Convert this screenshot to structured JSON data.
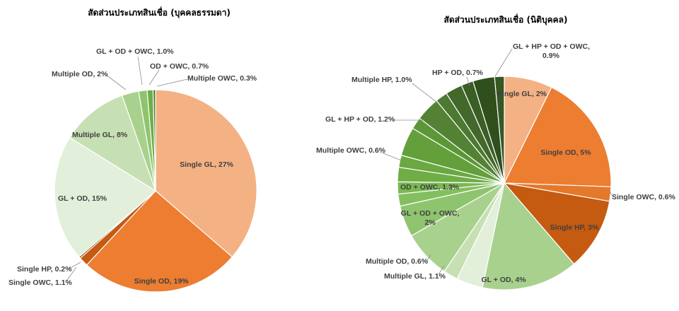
{
  "chart_data": [
    {
      "type": "pie",
      "title": "สัดส่วนประเภทสินเชื่อ (บุคคลธรรมดา)",
      "slices": [
        {
          "label": "Single GL, 27%",
          "value": 27,
          "color": "#f4b183"
        },
        {
          "label": "Single OD, 19%",
          "value": 19,
          "color": "#ed7d31"
        },
        {
          "label": "Single OWC, 1.1%",
          "value": 1.1,
          "color": "#c55a11"
        },
        {
          "label": "Single HP, 0.2%",
          "value": 0.2,
          "color": "#843c0c"
        },
        {
          "label": "GL + OD, 15%",
          "value": 15,
          "color": "#e2efda"
        },
        {
          "label": "Multiple GL, 8%",
          "value": 8,
          "color": "#c6e0b4"
        },
        {
          "label": "Multiple OD, 2%",
          "value": 2,
          "color": "#a9d18e"
        },
        {
          "label": "GL + OD + OWC, 1.0%",
          "value": 1.0,
          "color": "#8fc46e"
        },
        {
          "label": "OD + OWC, 0.7%",
          "value": 0.7,
          "color": "#70ad47"
        },
        {
          "label": "Multiple OWC, 0.3%",
          "value": 0.3,
          "color": "#548235"
        }
      ]
    },
    {
      "type": "pie",
      "title": "สัดส่วนประเภทสินเชื่อ (นิติบุคคล)",
      "slices": [
        {
          "label": "Single GL, 2%",
          "value": 2,
          "color": "#f4b183"
        },
        {
          "label": "Single OD, 5%",
          "value": 5,
          "color": "#ed7d31"
        },
        {
          "label": "Single OWC, 0.6%",
          "value": 0.6,
          "color": "#e4782b"
        },
        {
          "label": "Single HP, 3%",
          "value": 3,
          "color": "#c55a11"
        },
        {
          "label": "GL + OD, 4%",
          "value": 4,
          "color": "#a9d18e"
        },
        {
          "label": "Multiple GL, 1.1%",
          "value": 1.1,
          "color": "#e2efda"
        },
        {
          "label": "Multiple OD, 0.6%",
          "value": 0.6,
          "color": "#c6e0b4"
        },
        {
          "label": "GL + OD + OWC, 2%",
          "value": 2,
          "color": "#a9d18e"
        },
        {
          "label": "OD + OWC, 1.3%",
          "value": 1.3,
          "color": "#8fc46e"
        },
        {
          "label": "",
          "value": 0.5,
          "color": "#84bf5f"
        },
        {
          "label": "",
          "value": 0.5,
          "color": "#7ab854"
        },
        {
          "label": "Multiple OWC, 0.6%",
          "value": 0.6,
          "color": "#70ad47"
        },
        {
          "label": "",
          "value": 0.5,
          "color": "#6aa842"
        },
        {
          "label": "GL + HP + OD, 1.2%",
          "value": 1.2,
          "color": "#63a03c"
        },
        {
          "label": "",
          "value": 0.5,
          "color": "#5b9737"
        },
        {
          "label": "Multiple HP, 1.0%",
          "value": 1.0,
          "color": "#548235"
        },
        {
          "label": "",
          "value": 0.5,
          "color": "#4b7a30"
        },
        {
          "label": "HP + OD, 0.7%",
          "value": 0.7,
          "color": "#43682b"
        },
        {
          "label": "",
          "value": 0.5,
          "color": "#3a5e25"
        },
        {
          "label": "GL + HP + OD + OWC, 0.9%",
          "value": 0.9,
          "color": "#2f4f1c"
        },
        {
          "label": "",
          "value": 0.4,
          "color": "#385723"
        }
      ]
    }
  ]
}
